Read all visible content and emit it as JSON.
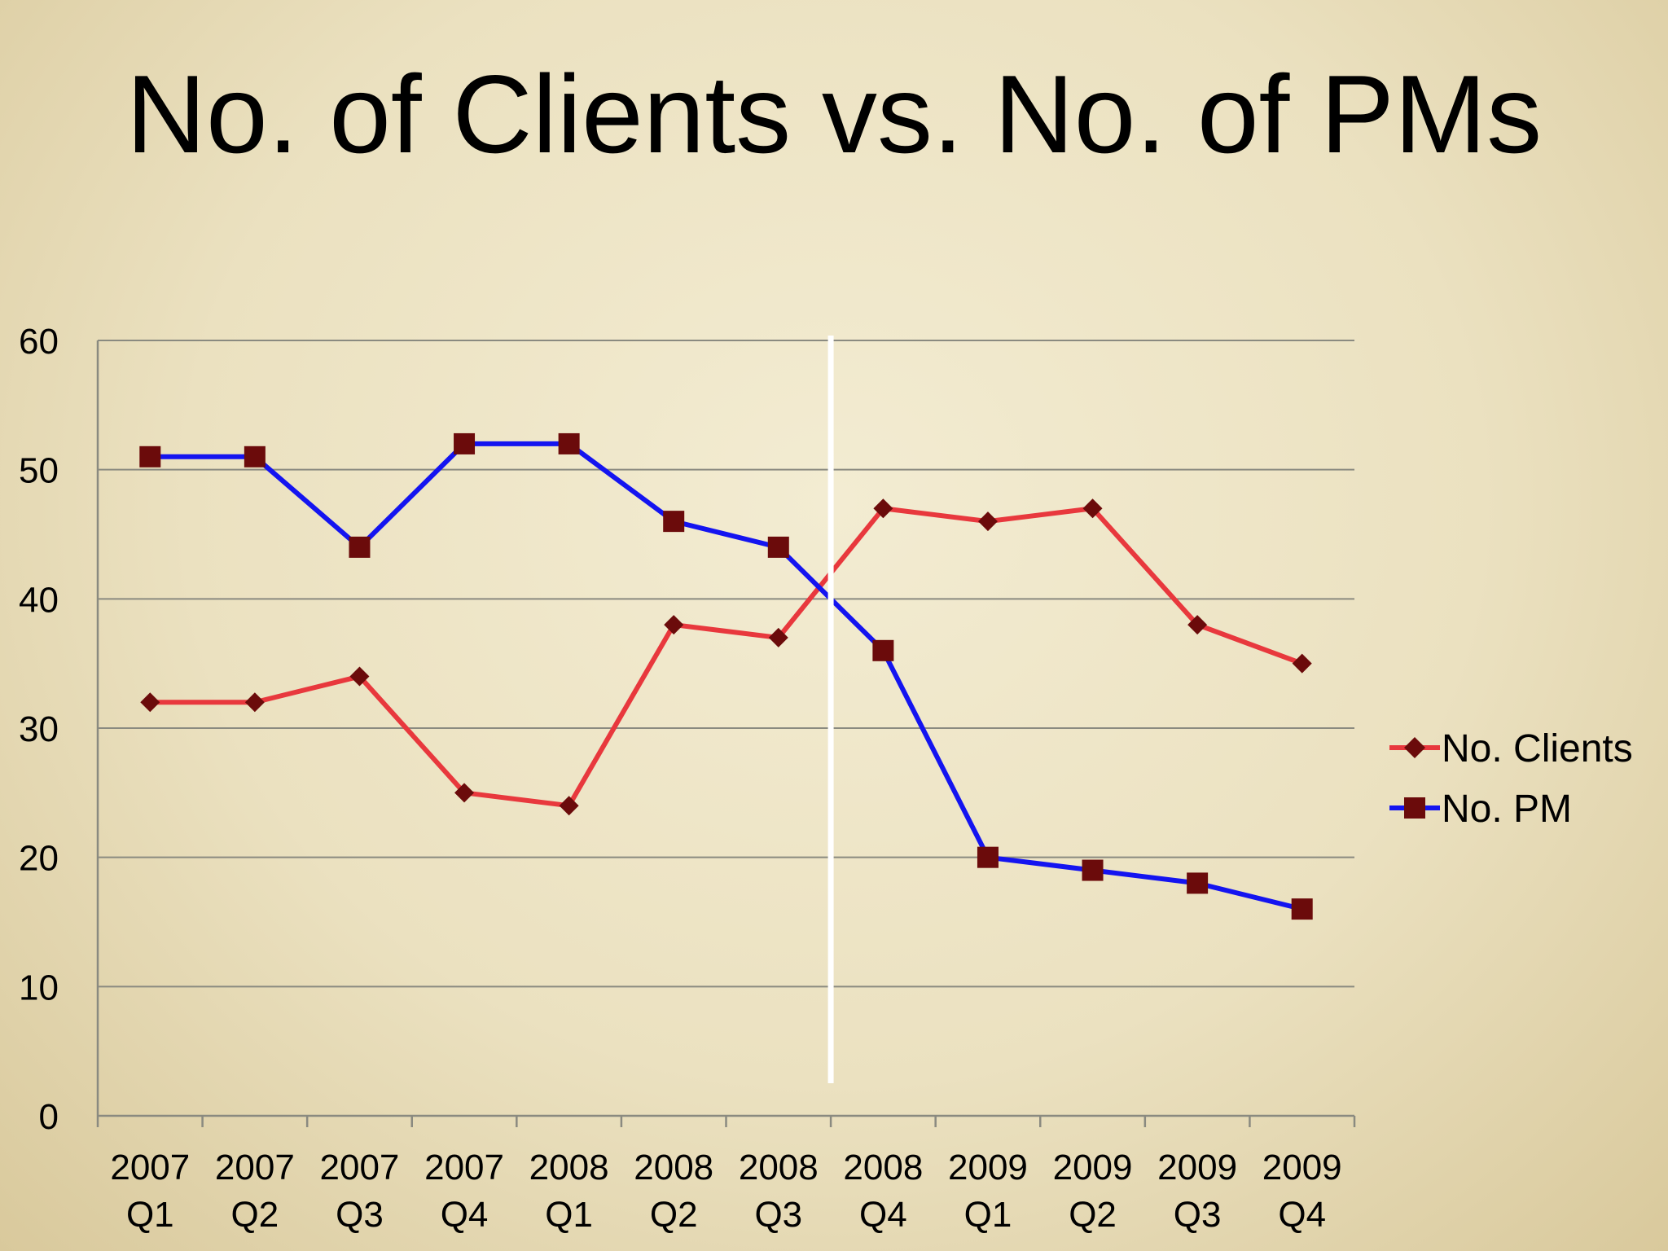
{
  "chart_data": {
    "type": "line",
    "title": "No. of Clients vs. No. of PMs",
    "categories": [
      [
        "2007",
        "Q1"
      ],
      [
        "2007",
        "Q2"
      ],
      [
        "2007",
        "Q3"
      ],
      [
        "2007",
        "Q4"
      ],
      [
        "2008",
        "Q1"
      ],
      [
        "2008",
        "Q2"
      ],
      [
        "2008",
        "Q3"
      ],
      [
        "2008",
        "Q4"
      ],
      [
        "2009",
        "Q1"
      ],
      [
        "2009",
        "Q2"
      ],
      [
        "2009",
        "Q3"
      ],
      [
        "2009",
        "Q4"
      ]
    ],
    "ylim": [
      0,
      60
    ],
    "yticks": [
      "0",
      "10",
      "20",
      "30",
      "40",
      "50",
      "60"
    ],
    "grid": true,
    "legend_position": "right",
    "series": [
      {
        "name": "No. Clients",
        "color": "#e8383d",
        "marker": "diamond",
        "values": [
          32,
          32,
          34,
          25,
          24,
          38,
          37,
          47,
          46,
          47,
          38,
          35
        ]
      },
      {
        "name": "No. PM",
        "color": "#1414f0",
        "marker": "square",
        "values": [
          51,
          51,
          44,
          52,
          52,
          46,
          44,
          36,
          20,
          19,
          18,
          16
        ]
      }
    ],
    "divider_after_category": 7,
    "marker_color": "#6b0b0b"
  }
}
